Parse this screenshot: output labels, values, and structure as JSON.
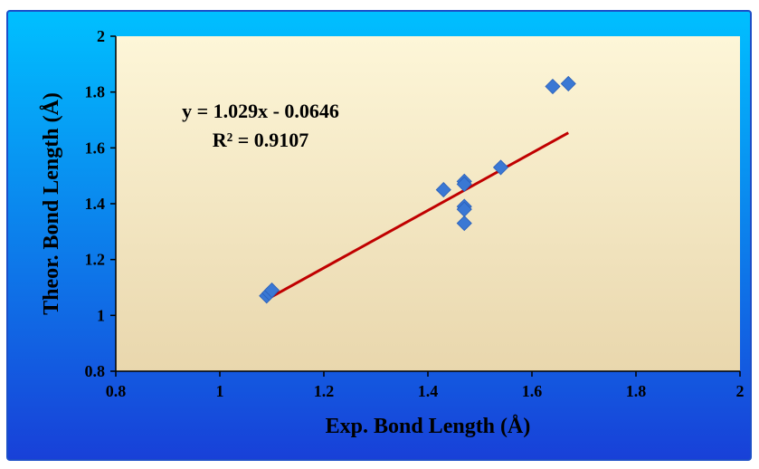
{
  "chart_data": {
    "type": "scatter",
    "xlabel": "Exp. Bond Length (Å)",
    "ylabel": "Theor. Bond Length (Å)",
    "xlim": [
      0.8,
      2
    ],
    "ylim": [
      0.8,
      2
    ],
    "xticks": [
      "0.8",
      "1",
      "1.2",
      "1.4",
      "1.6",
      "1.8",
      "2"
    ],
    "yticks": [
      "0.8",
      "1",
      "1.2",
      "1.4",
      "1.6",
      "1.8",
      "2"
    ],
    "points": [
      {
        "x": 1.09,
        "y": 1.07
      },
      {
        "x": 1.095,
        "y": 1.08
      },
      {
        "x": 1.1,
        "y": 1.09
      },
      {
        "x": 1.43,
        "y": 1.45
      },
      {
        "x": 1.47,
        "y": 1.48
      },
      {
        "x": 1.47,
        "y": 1.47
      },
      {
        "x": 1.47,
        "y": 1.39
      },
      {
        "x": 1.47,
        "y": 1.38
      },
      {
        "x": 1.47,
        "y": 1.33
      },
      {
        "x": 1.54,
        "y": 1.53
      },
      {
        "x": 1.64,
        "y": 1.82
      },
      {
        "x": 1.67,
        "y": 1.83
      }
    ],
    "trendline": {
      "slope": 1.029,
      "intercept": -0.0646,
      "x_range": [
        1.09,
        1.67
      ]
    },
    "annotation": {
      "equation": "y = 1.029x - 0.0646",
      "r_squared": "R² = 0.9107"
    },
    "grid": false,
    "legend": "none",
    "colors": {
      "marker": "#3a78d4",
      "trendline": "#c00000",
      "plot_bg_top": "#fdf6d8",
      "plot_bg_bottom": "#e9d7ad",
      "outer_bg_top": "#00c0ff",
      "outer_bg_bottom": "#1840d8"
    }
  }
}
